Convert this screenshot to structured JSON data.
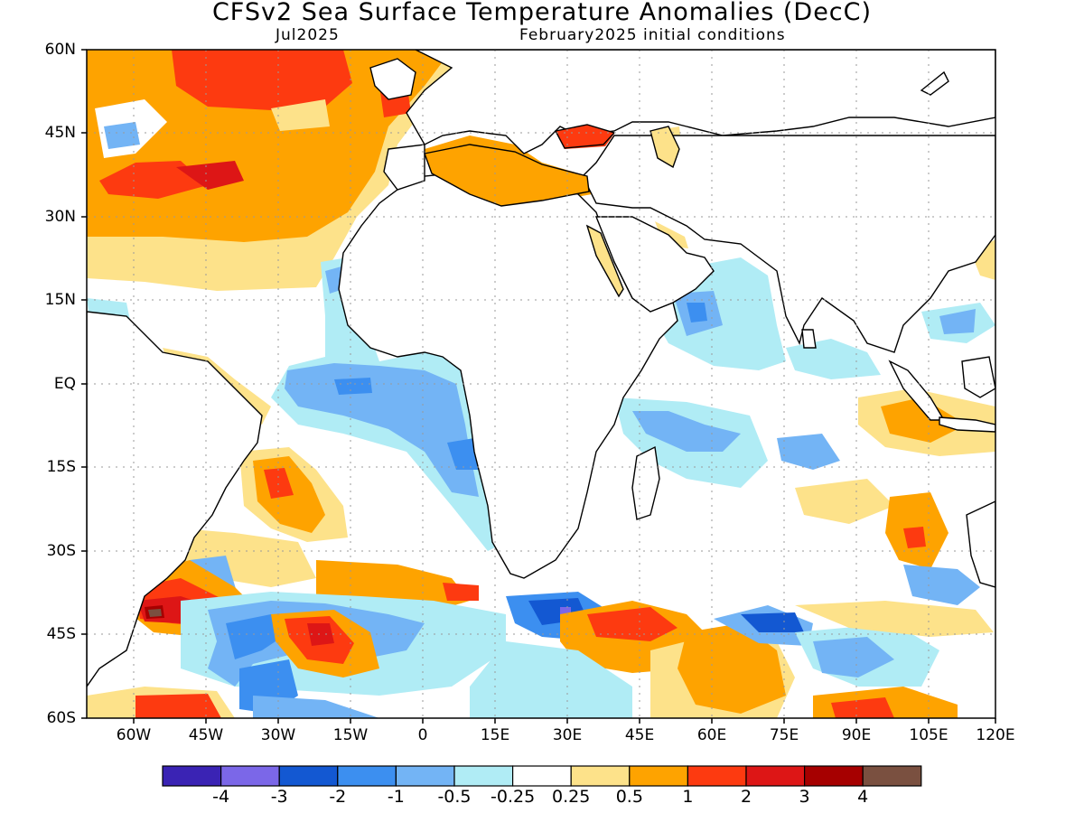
{
  "title": "CFSv2 Sea Surface Temperature Anomalies (DecC)",
  "valid_month": "Jul2025",
  "initial_conditions": "February2025 initial conditions",
  "lat_labels": [
    "60N",
    "45N",
    "30N",
    "15N",
    "EQ",
    "15S",
    "30S",
    "45S",
    "60S"
  ],
  "lon_labels": [
    "60W",
    "45W",
    "30W",
    "15W",
    "0",
    "15E",
    "30E",
    "45E",
    "60E",
    "75E",
    "90E",
    "105E",
    "120E"
  ],
  "colorbar": {
    "colors": [
      "#3a23b4",
      "#7b67e8",
      "#1358d2",
      "#3c8ff0",
      "#73b4f5",
      "#b0ecf5",
      "#ffffff",
      "#fde28a",
      "#fea300",
      "#fd3a10",
      "#dd1616",
      "#a60000",
      "#7a5040"
    ],
    "labels": [
      "-4",
      "-3",
      "-2",
      "-1",
      "-0.5",
      "-0.25",
      "0.25",
      "0.5",
      "1",
      "2",
      "3",
      "4"
    ]
  },
  "grid": "dotted"
}
